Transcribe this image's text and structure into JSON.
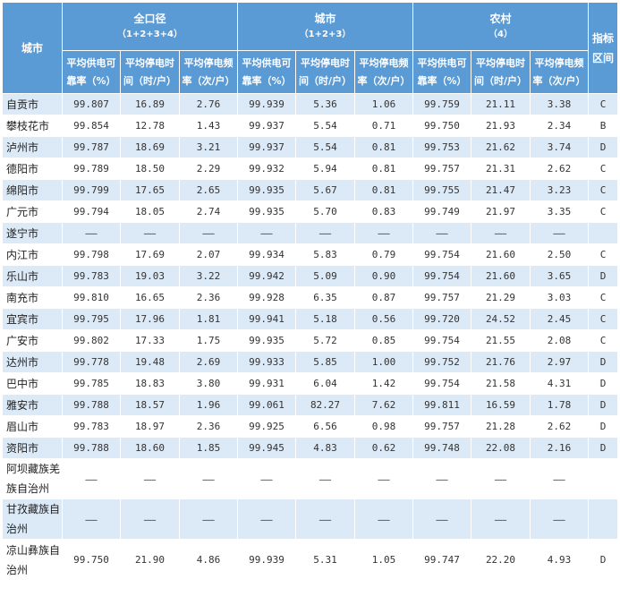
{
  "header": {
    "city": "城市",
    "index_range": "指标区间",
    "groups": [
      {
        "title": "全口径",
        "sub": "（1+2+3+4）"
      },
      {
        "title": "城市",
        "sub": "（1+2+3）"
      },
      {
        "title": "农村",
        "sub": "（4）"
      }
    ],
    "cols": [
      "平均供电可靠率（%）",
      "平均停电时间（时/户）",
      "平均停电频率（次/户）"
    ]
  },
  "rows": [
    {
      "name": "自贡市",
      "v": [
        "99.807",
        "16.89",
        "2.76",
        "99.939",
        "5.36",
        "1.06",
        "99.759",
        "21.11",
        "3.38"
      ],
      "idx": "C"
    },
    {
      "name": "攀枝花市",
      "v": [
        "99.854",
        "12.78",
        "1.43",
        "99.937",
        "5.54",
        "0.71",
        "99.750",
        "21.93",
        "2.34"
      ],
      "idx": "B"
    },
    {
      "name": "泸州市",
      "v": [
        "99.787",
        "18.69",
        "3.21",
        "99.937",
        "5.54",
        "0.81",
        "99.753",
        "21.62",
        "3.74"
      ],
      "idx": "D"
    },
    {
      "name": "德阳市",
      "v": [
        "99.789",
        "18.50",
        "2.29",
        "99.932",
        "5.94",
        "0.81",
        "99.757",
        "21.31",
        "2.62"
      ],
      "idx": "C"
    },
    {
      "name": "绵阳市",
      "v": [
        "99.799",
        "17.65",
        "2.65",
        "99.935",
        "5.67",
        "0.81",
        "99.755",
        "21.47",
        "3.23"
      ],
      "idx": "C"
    },
    {
      "name": "广元市",
      "v": [
        "99.794",
        "18.05",
        "2.74",
        "99.935",
        "5.70",
        "0.83",
        "99.749",
        "21.97",
        "3.35"
      ],
      "idx": "C"
    },
    {
      "name": "遂宁市",
      "v": [
        "——",
        "——",
        "——",
        "——",
        "——",
        "——",
        "——",
        "——",
        "——"
      ],
      "idx": ""
    },
    {
      "name": "内江市",
      "v": [
        "99.798",
        "17.69",
        "2.07",
        "99.934",
        "5.83",
        "0.79",
        "99.754",
        "21.60",
        "2.50"
      ],
      "idx": "C"
    },
    {
      "name": "乐山市",
      "v": [
        "99.783",
        "19.03",
        "3.22",
        "99.942",
        "5.09",
        "0.90",
        "99.754",
        "21.60",
        "3.65"
      ],
      "idx": "D"
    },
    {
      "name": "南充市",
      "v": [
        "99.810",
        "16.65",
        "2.36",
        "99.928",
        "6.35",
        "0.87",
        "99.757",
        "21.29",
        "3.03"
      ],
      "idx": "C"
    },
    {
      "name": "宜宾市",
      "v": [
        "99.795",
        "17.96",
        "1.81",
        "99.941",
        "5.18",
        "0.56",
        "99.720",
        "24.52",
        "2.45"
      ],
      "idx": "C"
    },
    {
      "name": "广安市",
      "v": [
        "99.802",
        "17.33",
        "1.75",
        "99.935",
        "5.72",
        "0.85",
        "99.754",
        "21.55",
        "2.08"
      ],
      "idx": "C"
    },
    {
      "name": "达州市",
      "v": [
        "99.778",
        "19.48",
        "2.69",
        "99.933",
        "5.85",
        "1.00",
        "99.752",
        "21.76",
        "2.97"
      ],
      "idx": "D"
    },
    {
      "name": "巴中市",
      "v": [
        "99.785",
        "18.83",
        "3.80",
        "99.931",
        "6.04",
        "1.42",
        "99.754",
        "21.58",
        "4.31"
      ],
      "idx": "D"
    },
    {
      "name": "雅安市",
      "v": [
        "99.788",
        "18.57",
        "1.96",
        "99.061",
        "82.27",
        "7.62",
        "99.811",
        "16.59",
        "1.78"
      ],
      "idx": "D"
    },
    {
      "name": "眉山市",
      "v": [
        "99.783",
        "18.97",
        "2.36",
        "99.925",
        "6.56",
        "0.98",
        "99.757",
        "21.28",
        "2.62"
      ],
      "idx": "D"
    },
    {
      "name": "资阳市",
      "v": [
        "99.788",
        "18.60",
        "1.85",
        "99.945",
        "4.83",
        "0.62",
        "99.748",
        "22.08",
        "2.16"
      ],
      "idx": "D"
    },
    {
      "name": "阿坝藏族羌族自治州",
      "v": [
        "——",
        "——",
        "——",
        "——",
        "——",
        "——",
        "——",
        "——",
        "——"
      ],
      "idx": ""
    },
    {
      "name": "甘孜藏族自治州",
      "v": [
        "——",
        "——",
        "——",
        "——",
        "——",
        "——",
        "——",
        "——",
        "——"
      ],
      "idx": ""
    },
    {
      "name": "凉山彝族自治州",
      "v": [
        "99.750",
        "21.90",
        "4.86",
        "99.939",
        "5.31",
        "1.05",
        "99.747",
        "22.20",
        "4.93"
      ],
      "idx": "D"
    }
  ]
}
